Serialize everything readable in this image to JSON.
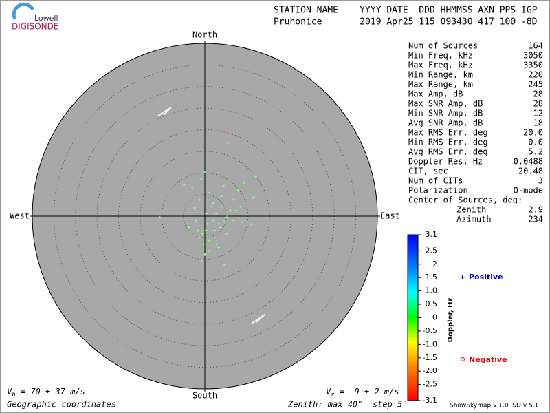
{
  "logo": {
    "top": "Lowell",
    "bottom": "DIGISONDE"
  },
  "header": {
    "columns": "STATION NAME    YYYY DATE  DDD HHMMSS AXN PPS IGP",
    "values": "Pruhonice       2019 Apr25 115 093430 417 100 -8D"
  },
  "skymap": {
    "directions": {
      "north": "North",
      "south": "South",
      "east": "East",
      "west": "West"
    },
    "zenith_max": 40,
    "zenith_step": 5,
    "color": "#80ff80",
    "points": {
      "east": [
        5.3,
        0,
        -4.8,
        -0.8,
        9.1,
        11.8,
        7.7,
        11.3,
        -10.4,
        -2.4,
        1.9,
        4.3,
        3.8,
        6.7,
        7.3,
        8.6,
        10.8,
        -3.7,
        -1.3,
        -0.8,
        1.1,
        4.6,
        3.2,
        0.3,
        1.9,
        2.7,
        3.5,
        1.1,
        -0.3,
        5.1,
        2.2,
        -2.1,
        0.3,
        3.8,
        5.1,
        1.6,
        -1.6,
        3.2,
        4.5,
        0.6,
        2.2,
        -0.5,
        5.9,
        6.7,
        1.1,
        -1.3,
        -2.9,
        8.3,
        2.7,
        0
      ],
      "north": [
        16.9,
        10.2,
        7.3,
        8.6,
        7.7,
        9.1,
        5.9,
        4.3,
        -0.3,
        1.9,
        3.0,
        7.0,
        4.6,
        3.8,
        1.3,
        -1.4,
        -1.9,
        -2.6,
        -4.9,
        -10.2,
        -8.1,
        -11.3,
        -7.3,
        -3.3,
        -1.0,
        0.6,
        -2.6,
        -5.7,
        -6.5,
        -4.1,
        -4.9,
        -1.0,
        0.6,
        2.2,
        -0.2,
        2.2,
        -3.3,
        -1.8,
        -1.3,
        -1.8,
        -3.3,
        -4.1,
        1.4,
        -1.0,
        5.4,
        3.8,
        6.7,
        2.2,
        -6.5,
        -8.9
      ]
    }
  },
  "stats": [
    [
      "Num of Sources",
      "164"
    ],
    [
      "Min Freq, kHz",
      "3050"
    ],
    [
      "Max Freq, kHz",
      "3350"
    ],
    [
      "Min Range, km",
      "220"
    ],
    [
      "Max Range, km",
      "245"
    ],
    [
      "Max Amp, dB",
      "28"
    ],
    [
      "Max SNR Amp, dB",
      "28"
    ],
    [
      "Min SNR Amp, dB",
      "12"
    ],
    [
      "Avg SNR Amp, dB",
      "18"
    ],
    [
      "Max RMS Err, deg",
      "20.0"
    ],
    [
      "Min RMS Err, deg",
      "0.0"
    ],
    [
      "Avg RMS Err, deg",
      "5.2"
    ],
    [
      "Doppler Res, Hz",
      "0.0488"
    ],
    [
      "CIT, sec",
      "20.48"
    ],
    [
      "Num of CITs",
      "3"
    ],
    [
      "Polarization",
      "O-mode"
    ],
    [
      "Center of Sources, deg:",
      ""
    ]
  ],
  "center": [
    [
      "Zenith",
      "2.9"
    ],
    [
      "Azimuth",
      "234"
    ]
  ],
  "colorbar": {
    "title": "Doppler, Hz",
    "lim": [
      -3.1,
      3.1
    ],
    "ticks": [
      3.1,
      2.5,
      2,
      1.5,
      {
        "value": 1,
        "label": "1.0"
      },
      0.5,
      0,
      -0.5,
      {
        "value": -1,
        "label": "-1.0"
      },
      -1.5,
      {
        "value": -2,
        "label": "-2.0"
      },
      -2.5,
      -3.1
    ]
  },
  "legend": {
    "positive": "Positive",
    "negative": "Negative"
  },
  "footer": {
    "vh": {
      "symbol": "V",
      "sub": "h",
      "text": " = 70 ± 37 m/s"
    },
    "vz": {
      "symbol": "V",
      "sub": "z",
      "text": " = -9 ± 2 m/s"
    },
    "coords": "Geographic coordinates",
    "zenith": "Zenith: max 40°  step 5°",
    "version": "ShowSkymap v 1.0  SD v 5.1"
  }
}
